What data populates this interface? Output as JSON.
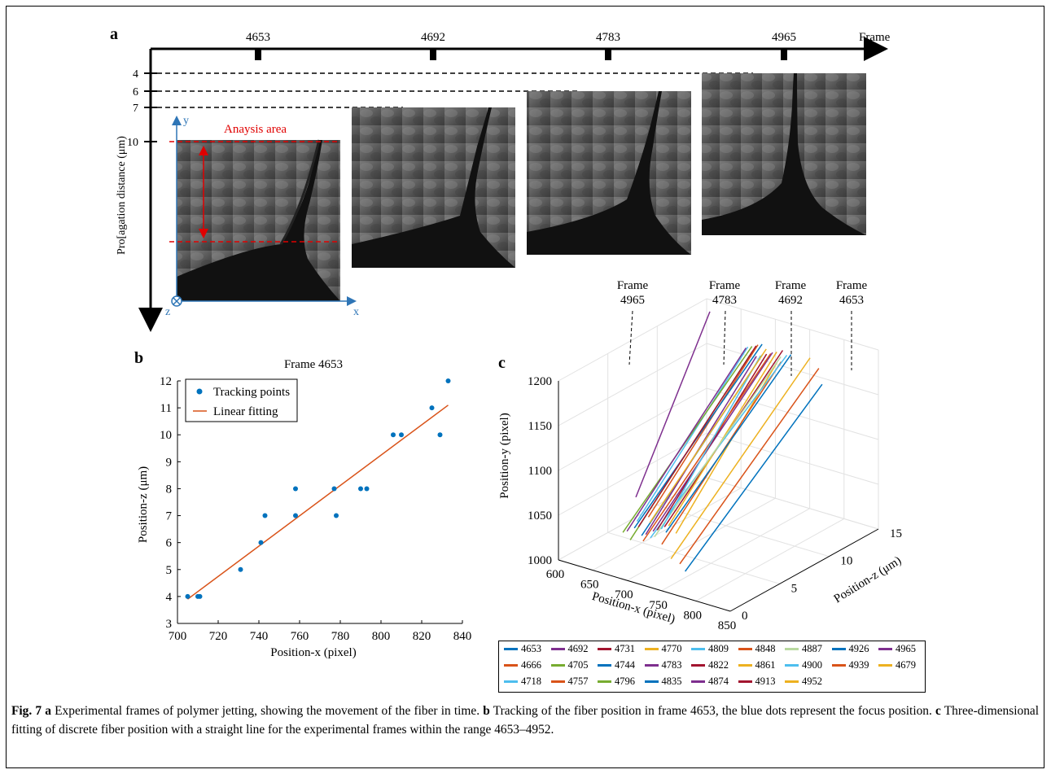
{
  "figure": {
    "panel_labels": [
      "a",
      "b",
      "c"
    ],
    "panel_a": {
      "frame_axis_label": "Frame",
      "frames": [
        "4653",
        "4692",
        "4783",
        "4965"
      ],
      "y_axis_label": "Pro[agation distance (μm)",
      "y_ticks": [
        "4",
        "6",
        "7",
        "10"
      ],
      "analysis_label": "Anaysis area",
      "coord_axes": [
        "y",
        "x",
        "z"
      ]
    },
    "panel_c_frame_labels": [
      {
        "line1": "Frame",
        "line2": "4965"
      },
      {
        "line1": "Frame",
        "line2": "4783"
      },
      {
        "line1": "Frame",
        "line2": "4692"
      },
      {
        "line1": "Frame",
        "line2": "4653"
      }
    ],
    "legend": [
      {
        "label": "4653",
        "color": "#0072BD"
      },
      {
        "label": "4692",
        "color": "#7E2F8E"
      },
      {
        "label": "4731",
        "color": "#A2142F"
      },
      {
        "label": "4770",
        "color": "#EDB120"
      },
      {
        "label": "4809",
        "color": "#4DBEEE"
      },
      {
        "label": "4848",
        "color": "#D95319"
      },
      {
        "label": "4887",
        "color": "#B9D9A0"
      },
      {
        "label": "4926",
        "color": "#0072BD"
      },
      {
        "label": "4965",
        "color": "#7E2F8E"
      },
      {
        "label": "4666",
        "color": "#D95319"
      },
      {
        "label": "4705",
        "color": "#77AC30"
      },
      {
        "label": "4744",
        "color": "#0072BD"
      },
      {
        "label": "4783",
        "color": "#7E2F8E"
      },
      {
        "label": "4822",
        "color": "#A2142F"
      },
      {
        "label": "4861",
        "color": "#EDB120"
      },
      {
        "label": "4900",
        "color": "#4DBEEE"
      },
      {
        "label": "4939",
        "color": "#D95319"
      },
      {
        "label": "4679",
        "color": "#EDB120"
      },
      {
        "label": "4718",
        "color": "#4DBEEE"
      },
      {
        "label": "4757",
        "color": "#D95319"
      },
      {
        "label": "4796",
        "color": "#77AC30"
      },
      {
        "label": "4835",
        "color": "#0072BD"
      },
      {
        "label": "4874",
        "color": "#7E2F8E"
      },
      {
        "label": "4913",
        "color": "#A2142F"
      },
      {
        "label": "4952",
        "color": "#EDB120"
      }
    ],
    "caption": {
      "fig_label": "Fig. 7",
      "a_label": "a",
      "a_text": " Experimental frames of polymer jetting, showing the movement of the fiber in time. ",
      "b_label": "b",
      "b_text": " Tracking of the fiber position in frame 4653, the blue dots represent the focus position. ",
      "c_label": "c",
      "c_text": " Three-dimensional fitting of discrete fiber position with a straight line for the experimental frames within the range 4653–4952."
    }
  },
  "chart_data": [
    {
      "type": "scatter",
      "title": "Frame 4653",
      "xlabel": "Position-x (pixel)",
      "ylabel": "Position-z (μm)",
      "xlim": [
        700,
        840
      ],
      "ylim": [
        3,
        12
      ],
      "xticks": [
        700,
        720,
        740,
        760,
        780,
        800,
        820,
        840
      ],
      "yticks": [
        3,
        4,
        5,
        6,
        7,
        8,
        9,
        10,
        11,
        12
      ],
      "legend_position": "top-left",
      "series": [
        {
          "name": "Tracking points",
          "kind": "scatter",
          "color": "#0072BD",
          "points": [
            [
              705,
              4
            ],
            [
              710,
              4
            ],
            [
              711,
              4
            ],
            [
              731,
              5
            ],
            [
              741,
              6
            ],
            [
              743,
              7
            ],
            [
              758,
              7
            ],
            [
              758,
              8
            ],
            [
              777,
              8
            ],
            [
              778,
              7
            ],
            [
              790,
              8
            ],
            [
              793,
              8
            ],
            [
              806,
              10
            ],
            [
              810,
              10
            ],
            [
              825,
              11
            ],
            [
              829,
              10
            ],
            [
              833,
              12
            ]
          ]
        },
        {
          "name": "Linear fitting",
          "kind": "line",
          "color": "#D95319",
          "points": [
            [
              705,
              3.9
            ],
            [
              833,
              11.1
            ]
          ]
        }
      ]
    },
    {
      "type": "line",
      "title": "",
      "xlabel": "Position-x (pixel)",
      "ylabel": "Position-y (pixel)",
      "zlabel": "Position-z (μm)",
      "xlim": [
        600,
        850
      ],
      "ylim": [
        1000,
        1200
      ],
      "zlim": [
        0,
        15
      ],
      "xticks": [
        600,
        650,
        700,
        750,
        800,
        850
      ],
      "yticks": [
        1000,
        1050,
        1100,
        1150,
        1200
      ],
      "zticks": [
        0,
        5,
        10,
        15
      ],
      "grid": true,
      "legend_position": "bottom"
    }
  ]
}
